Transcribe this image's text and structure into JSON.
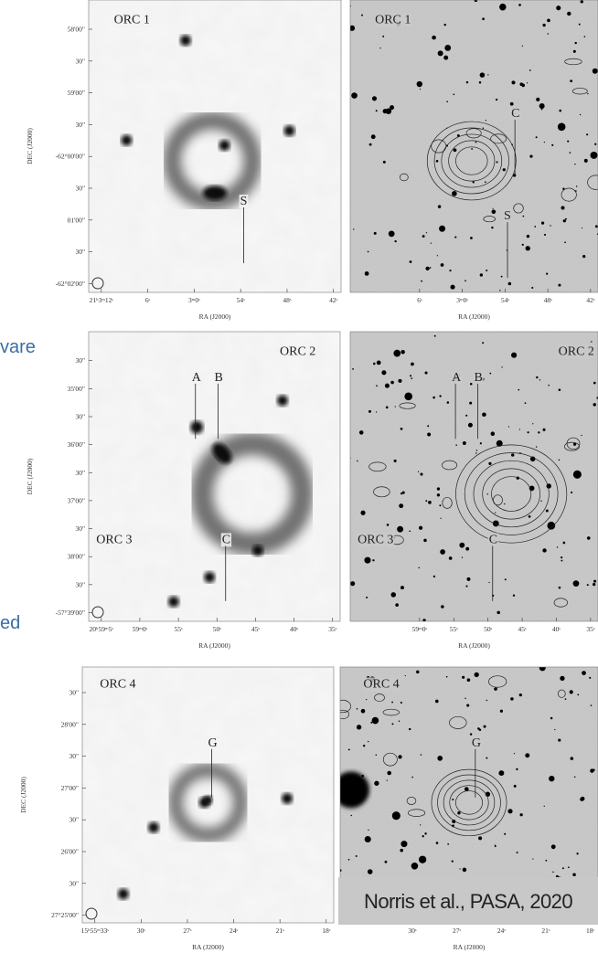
{
  "slide_text": [
    "vare",
    "ed"
  ],
  "credit": "Norris et al., PASA, 2020",
  "panels": [
    {
      "labels": [
        "ORC 1",
        "S"
      ],
      "yticks": [
        "58'00\"",
        "30\"",
        "59'00\"",
        "30\"",
        "-62°00'00\"",
        "30\"",
        "01'00\"",
        "30\"",
        "-62°02'00\""
      ],
      "xticks": [
        "21ʰ3ᵐ12ˢ",
        "6ˢ",
        "3ᵐ0ˢ",
        "54ˢ",
        "48ˢ",
        "42ˢ"
      ],
      "ylabel": "DEC (J2000)",
      "xlabel": "RA (J2000)"
    },
    {
      "labels": [
        "ORC 1",
        "C",
        "S"
      ],
      "xticks": [
        "6ˢ",
        "3ᵐ0ˢ",
        "54ˢ",
        "48ˢ",
        "42ˢ"
      ],
      "xlabel": "RA (J2000)"
    },
    {
      "labels": [
        "ORC 2",
        "A",
        "B",
        "C",
        "ORC 3"
      ],
      "yticks": [
        "30\"",
        "35'00\"",
        "30\"",
        "36'00\"",
        "30\"",
        "37'00\"",
        "30\"",
        "38'00\"",
        "30\"",
        "-57°39'00\""
      ],
      "xticks": [
        "20ʰ59ᵐ5ˢ",
        "59ᵐ0ˢ",
        "55ˢ",
        "50ˢ",
        "45ˢ",
        "40ˢ",
        "35ˢ"
      ],
      "ylabel": "DEC (J2000)",
      "xlabel": "RA (J2000)"
    },
    {
      "labels": [
        "ORC 2",
        "A",
        "B",
        "C",
        "ORC 3"
      ],
      "xticks": [
        "59ᵐ0ˢ",
        "55ˢ",
        "50ˢ",
        "45ˢ",
        "40ˢ",
        "35ˢ"
      ],
      "xlabel": "RA (J2000)"
    },
    {
      "labels": [
        "ORC 4",
        "G"
      ],
      "yticks": [
        "30\"",
        "28'00\"",
        "30\"",
        "27'00\"",
        "30\"",
        "26'00\"",
        "30\"",
        "27°25'00\""
      ],
      "xticks": [
        "15ʰ55ᵐ33ˢ",
        "30ˢ",
        "27ˢ",
        "24ˢ",
        "21ˢ",
        "18ˢ"
      ],
      "ylabel": "DEC (J2000)",
      "xlabel": "RA (J2000)"
    },
    {
      "labels": [
        "ORC 4",
        "G"
      ],
      "xticks": [
        "30ˢ",
        "27ˢ",
        "24ˢ",
        "21ˢ",
        "18ˢ"
      ],
      "xlabel": "RA (J2000)"
    }
  ]
}
